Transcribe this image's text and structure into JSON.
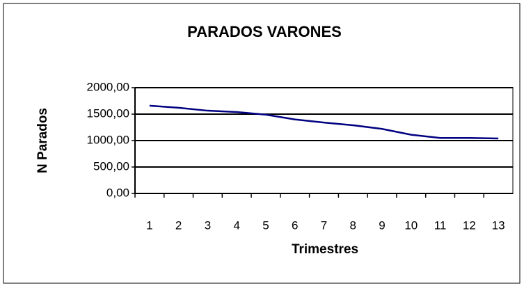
{
  "chart_data": {
    "type": "line",
    "title": "PARADOS VARONES",
    "x_label": "Trimestres",
    "y_label": "N  Parados",
    "categories": [
      "1",
      "2",
      "3",
      "4",
      "5",
      "6",
      "7",
      "8",
      "9",
      "10",
      "11",
      "12",
      "13"
    ],
    "series": [
      {
        "name": "Parados varones",
        "color": "#000080",
        "values": [
          1660,
          1620,
          1565,
          1540,
          1490,
          1400,
          1340,
          1290,
          1220,
          1110,
          1050,
          1050,
          1040
        ]
      }
    ],
    "ylim": [
      0,
      2000
    ],
    "yticks": [
      {
        "value": 0,
        "label": "0,00"
      },
      {
        "value": 500,
        "label": "500,00"
      },
      {
        "value": 1000,
        "label": "1000,00"
      },
      {
        "value": 1500,
        "label": "1500,00"
      },
      {
        "value": 2000,
        "label": "2000,00"
      }
    ],
    "grid": true,
    "legend": false
  }
}
